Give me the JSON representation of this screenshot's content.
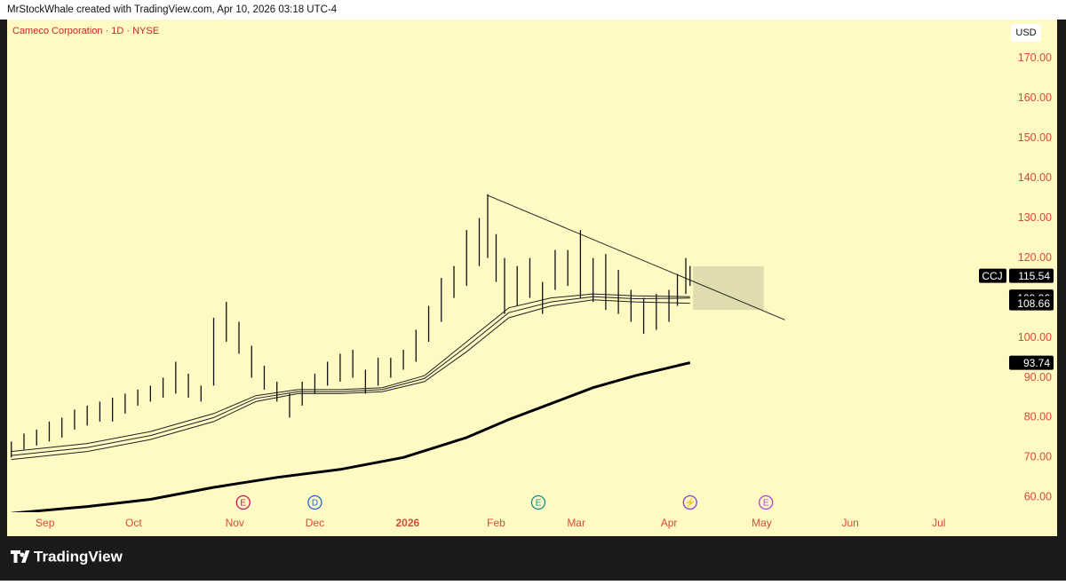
{
  "header": {
    "credit": "MrStockWhale created with TradingView.com, Apr 10, 2026 03:18 UTC-4",
    "footer_brand": "TradingView"
  },
  "chart_data": {
    "type": "ohlc",
    "title": "Cameco Corporation · 1D · NYSE",
    "currency": "USD",
    "symbol": "CCJ",
    "last_price": 115.54,
    "xlim": [
      -9,
      219
    ],
    "ylim": [
      56.5,
      180
    ],
    "xticks": [
      {
        "value": 0,
        "label": "Sep"
      },
      {
        "value": 21,
        "label": "Oct"
      },
      {
        "value": 45,
        "label": "Nov"
      },
      {
        "value": 64,
        "label": "Dec"
      },
      {
        "value": 86,
        "label": "2026"
      },
      {
        "value": 107,
        "label": "Feb"
      },
      {
        "value": 126,
        "label": "Mar"
      },
      {
        "value": 148,
        "label": "Apr"
      },
      {
        "value": 170,
        "label": "May"
      },
      {
        "value": 191,
        "label": "Jun"
      },
      {
        "value": 212,
        "label": "Jul"
      }
    ],
    "yticks": [
      {
        "value": 60,
        "label": "60.00"
      },
      {
        "value": 70,
        "label": "70.00"
      },
      {
        "value": 80,
        "label": "80.00"
      },
      {
        "value": 90,
        "label": "90.00"
      },
      {
        "value": 100,
        "label": "100.00"
      },
      {
        "value": 110,
        "label": "110.00"
      },
      {
        "value": 120,
        "label": "120.00"
      },
      {
        "value": 130,
        "label": "130.00"
      },
      {
        "value": 140,
        "label": "140.00"
      },
      {
        "value": 150,
        "label": "150.00"
      },
      {
        "value": 160,
        "label": "160.00"
      },
      {
        "value": 170,
        "label": "170.00"
      }
    ],
    "bars": {
      "x": [
        -8,
        -5,
        -2,
        1,
        4,
        7,
        10,
        13,
        16,
        19,
        22,
        25,
        28,
        31,
        34,
        37,
        40,
        43,
        46,
        49,
        52,
        55,
        58,
        61,
        64,
        67,
        70,
        73,
        76,
        79,
        82,
        85,
        88,
        91,
        94,
        97,
        100,
        103,
        105,
        107,
        109,
        112,
        115,
        118,
        121,
        124,
        127,
        130,
        133,
        136,
        139,
        142,
        145,
        148,
        150,
        152,
        153
      ],
      "low": [
        70,
        72,
        73,
        74,
        75,
        77,
        78,
        79,
        79,
        81,
        83,
        84,
        85,
        86,
        85,
        84,
        88,
        99,
        96,
        90,
        87,
        84,
        80,
        83,
        86,
        88,
        89,
        90,
        86,
        88,
        90,
        92,
        94,
        99,
        104,
        110,
        113,
        118,
        120,
        114,
        106,
        108,
        110,
        106,
        112,
        113,
        110,
        109,
        107,
        106,
        104,
        101,
        102,
        104,
        108,
        111,
        113
      ],
      "high": [
        74,
        76,
        77,
        79,
        80,
        82,
        83,
        84,
        85,
        86,
        87,
        88,
        90,
        94,
        91,
        88,
        105,
        109,
        104,
        98,
        93,
        89,
        86,
        89,
        91,
        94,
        96,
        97,
        92,
        95,
        95,
        97,
        102,
        108,
        115,
        118,
        127,
        130,
        136,
        126,
        120,
        118,
        120,
        114,
        122,
        122,
        127,
        120,
        121,
        117,
        112,
        110,
        111,
        112,
        116,
        120,
        118
      ],
      "color": "#111111"
    },
    "series": [
      {
        "x": [
          -8,
          10,
          25,
          40,
          50,
          60,
          70,
          80,
          90,
          100,
          110,
          120,
          130,
          140,
          153
        ],
        "values": [
          71.5,
          73.5,
          76.5,
          81,
          85.5,
          87,
          87,
          87.5,
          90.5,
          99,
          107.5,
          110,
          111,
          110.5,
          110.31
        ],
        "color": "#222222",
        "width": 1
      },
      {
        "x": [
          -8,
          10,
          25,
          40,
          50,
          60,
          70,
          80,
          90,
          100,
          110,
          120,
          130,
          140,
          153
        ],
        "values": [
          70.5,
          72.5,
          75.5,
          80,
          84.8,
          86.5,
          86.5,
          87,
          89.8,
          97.8,
          106.3,
          109,
          110.3,
          109.8,
          109.96
        ],
        "color": "#222222",
        "width": 1
      },
      {
        "x": [
          -8,
          10,
          25,
          40,
          50,
          60,
          70,
          80,
          90,
          100,
          110,
          120,
          130,
          140,
          153
        ],
        "values": [
          69.5,
          71.5,
          74.5,
          79,
          84,
          86,
          86,
          86.5,
          89,
          96.5,
          105,
          108,
          109.5,
          109,
          108.66
        ],
        "color": "#222222",
        "width": 1
      },
      {
        "x": [
          -8,
          10,
          25,
          40,
          55,
          70,
          85,
          100,
          110,
          120,
          130,
          140,
          153
        ],
        "values": [
          56,
          57.7,
          59.5,
          62.5,
          65,
          67,
          70,
          75,
          79.5,
          83.5,
          87.5,
          90.5,
          93.74
        ],
        "color": "#000000",
        "width": 3
      }
    ],
    "trendline": {
      "x": [
        105,
        175.5
      ],
      "values": [
        135.7,
        104.5
      ],
      "color": "#222222"
    },
    "zone": {
      "x": [
        153.7,
        170.5
      ],
      "values": [
        107,
        117.9
      ],
      "color": "#d8d4a8"
    },
    "events": [
      {
        "x": 47,
        "label": "E",
        "color": "#c2185b"
      },
      {
        "x": 64,
        "label": "D",
        "color": "#1e63d6"
      },
      {
        "x": 117,
        "label": "E",
        "color": "#0d8f8f"
      },
      {
        "x": 153,
        "label": "⚡",
        "color": "#7b3fd6"
      },
      {
        "x": 171,
        "label": "E",
        "color": "#b03fd6"
      }
    ]
  }
}
